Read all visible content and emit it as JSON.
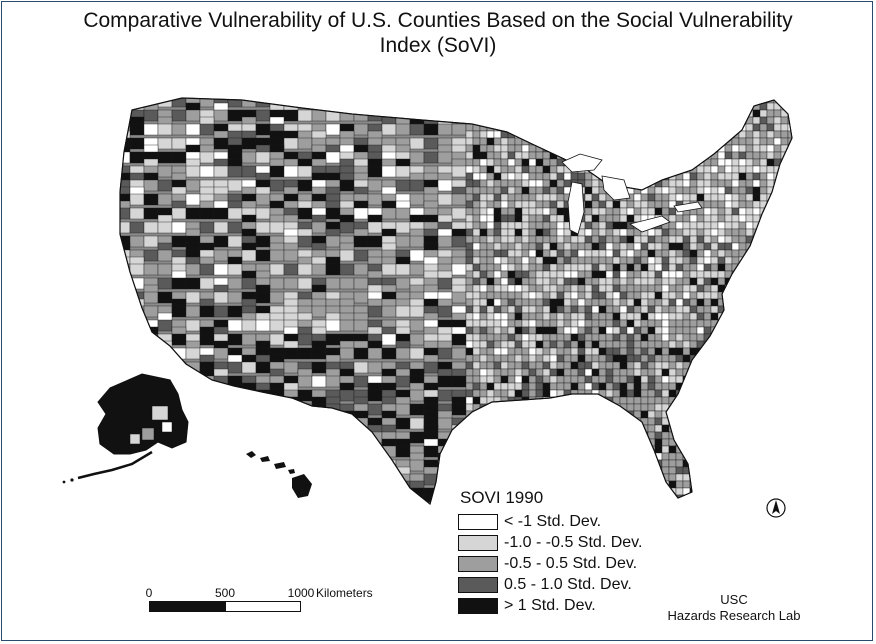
{
  "title": {
    "line1": "Comparative Vulnerability of U.S. Counties Based on the Social Vulnerability",
    "line2": "Index (SoVI)"
  },
  "legend": {
    "title": "SOVI 1990",
    "items": [
      {
        "label": "< -1 Std. Dev.",
        "color": "#ffffff"
      },
      {
        "label": "-1.0 - -0.5 Std. Dev.",
        "color": "#d6d6d6"
      },
      {
        "label": "-0.5 - 0.5 Std. Dev.",
        "color": "#9e9e9e"
      },
      {
        "label": "0.5 - 1.0 Std. Dev.",
        "color": "#5a5a5a"
      },
      {
        "label": "> 1 Std. Dev.",
        "color": "#111111"
      }
    ]
  },
  "scale_bar": {
    "ticks": [
      "0",
      "500",
      "1000"
    ],
    "unit": "Kilometers"
  },
  "credit": {
    "line1": "USC",
    "line2": "Hazards Research Lab"
  },
  "map": {
    "regions": [
      "contiguous-us",
      "alaska",
      "hawaii"
    ],
    "north_arrow": "north-arrow-icon"
  }
}
